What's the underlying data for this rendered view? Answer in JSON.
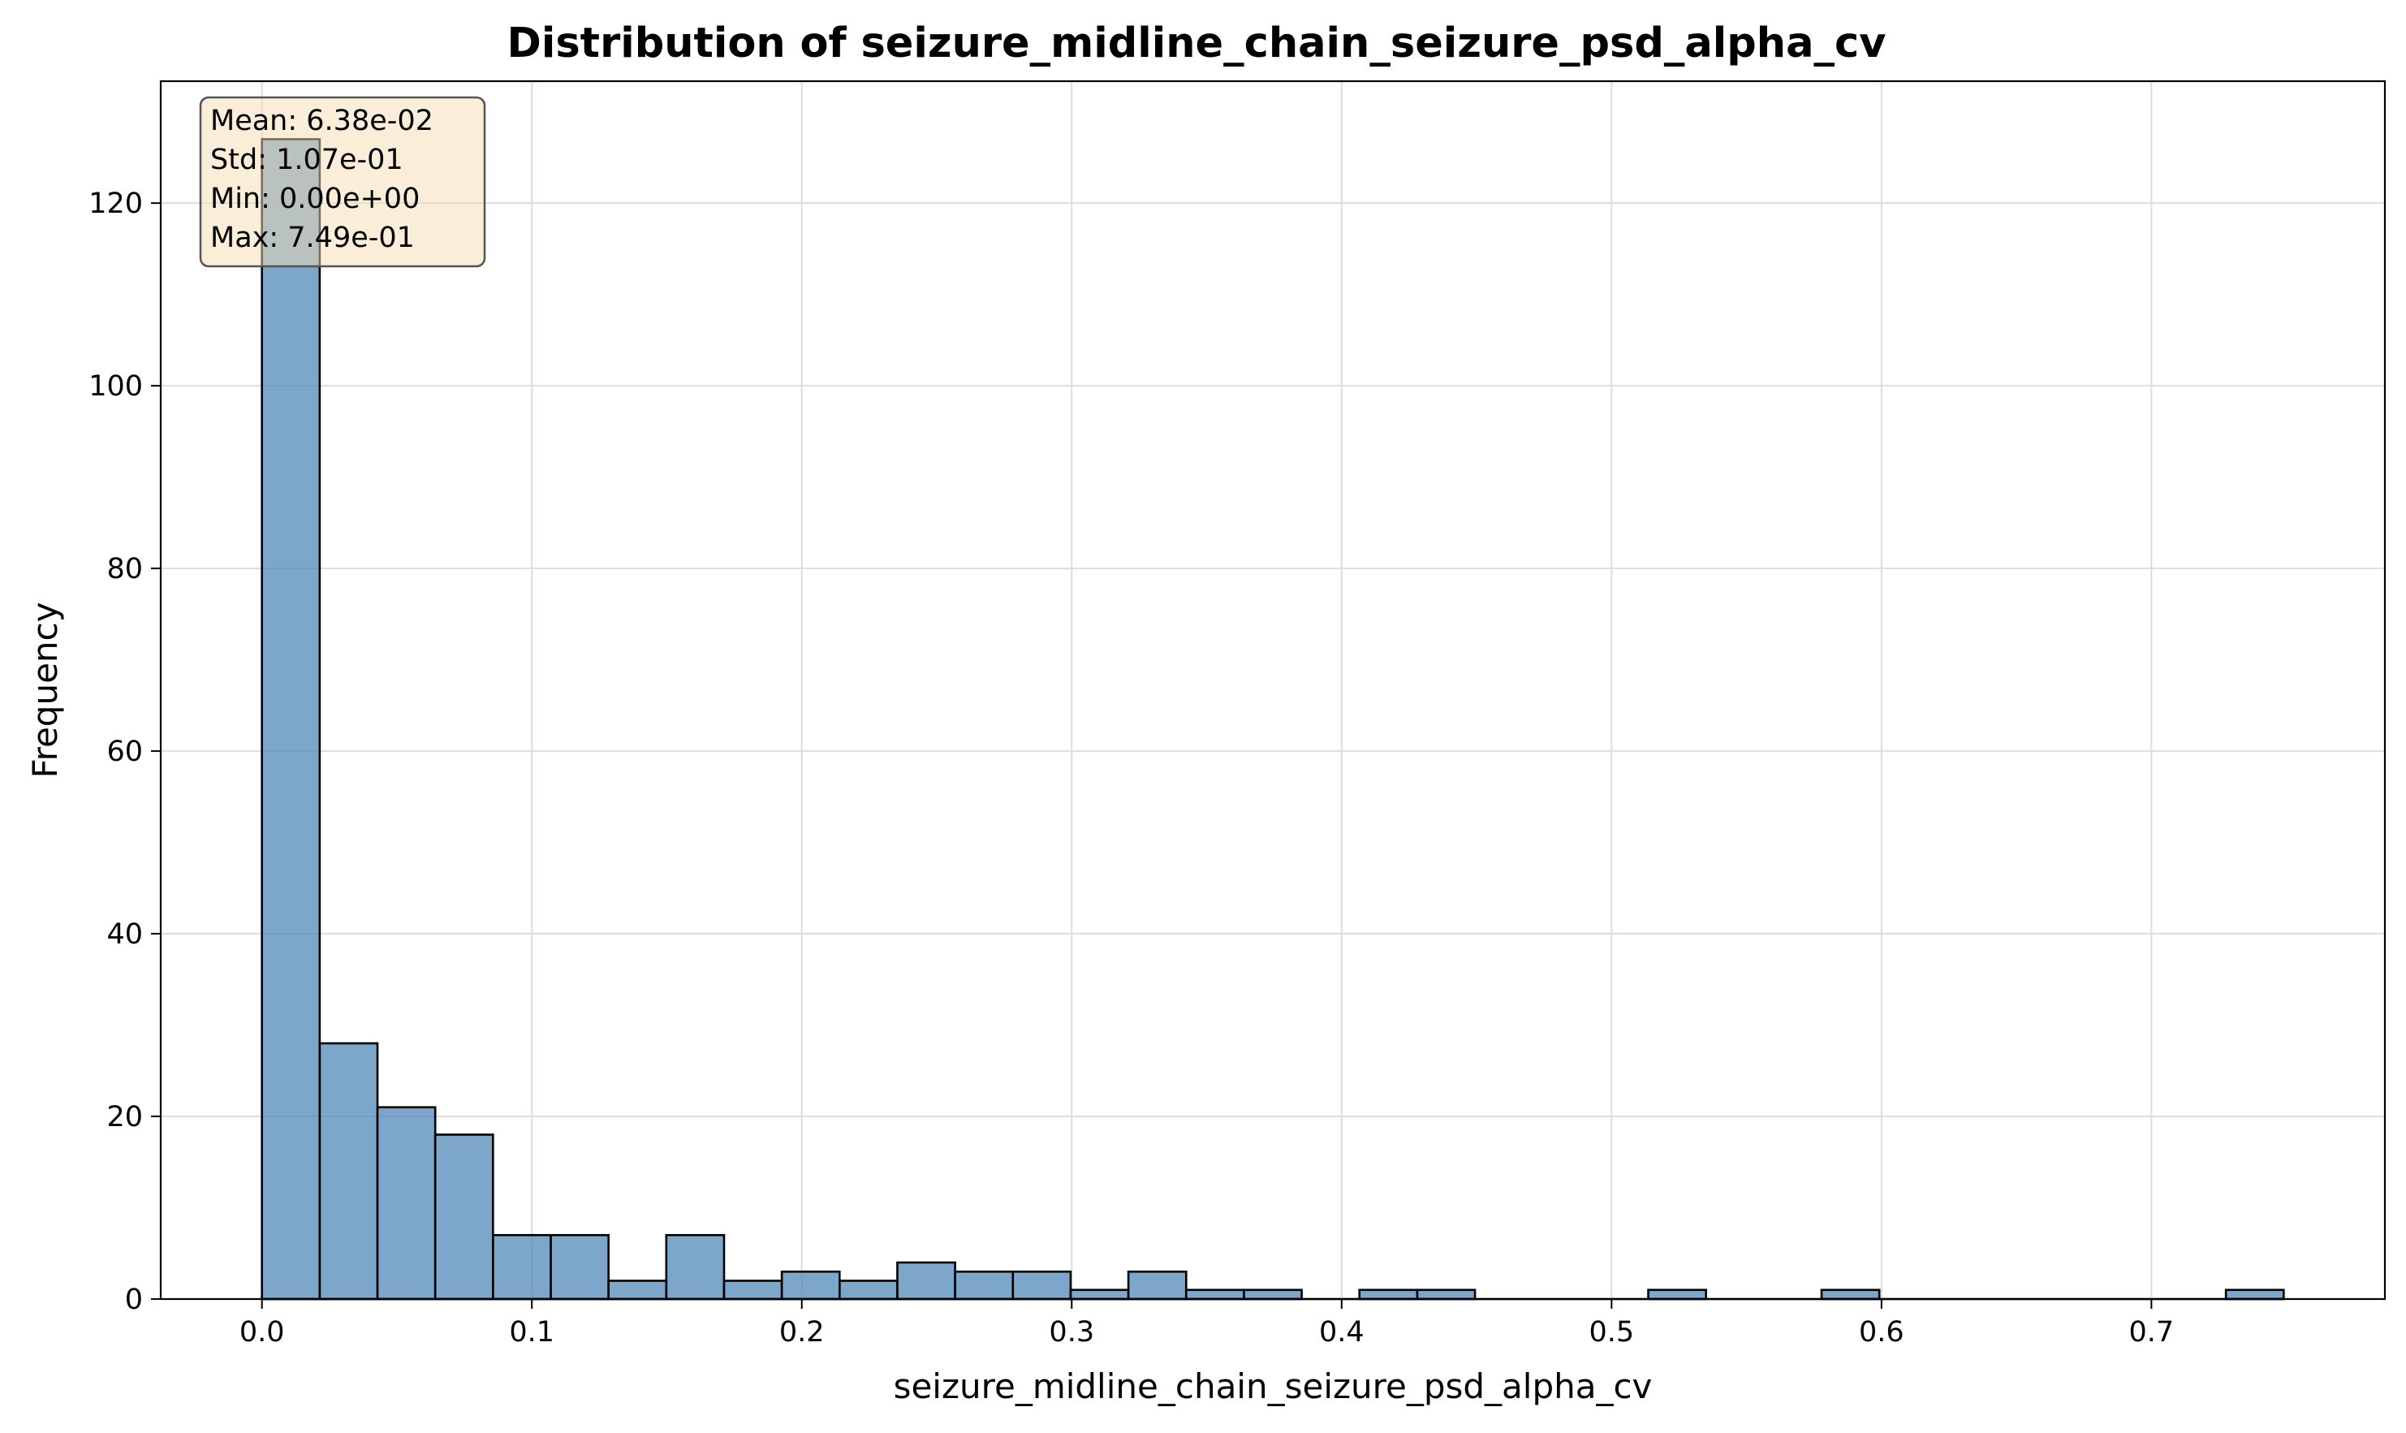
{
  "chart_data": {
    "type": "bar",
    "title": "Distribution of seizure_midline_chain_seizure_psd_alpha_cv",
    "xlabel": "seizure_midline_chain_seizure_psd_alpha_cv",
    "ylabel": "Frequency",
    "xlim": [
      -0.0375,
      0.7865
    ],
    "ylim": [
      0,
      133.35
    ],
    "xticks": [
      0.0,
      0.1,
      0.2,
      0.3,
      0.4,
      0.5,
      0.6,
      0.7
    ],
    "xtick_labels": [
      "0.0",
      "0.1",
      "0.2",
      "0.3",
      "0.4",
      "0.5",
      "0.6",
      "0.7"
    ],
    "yticks": [
      0,
      20,
      40,
      60,
      80,
      100,
      120
    ],
    "ytick_labels": [
      "0",
      "20",
      "40",
      "60",
      "80",
      "100",
      "120"
    ],
    "grid": true,
    "bar_color": "#4682b4",
    "bin_range": [
      0.0,
      0.749
    ],
    "bins": 35,
    "values": [
      127,
      28,
      21,
      18,
      7,
      7,
      2,
      7,
      2,
      3,
      2,
      4,
      3,
      3,
      1,
      3,
      1,
      1,
      0,
      1,
      1,
      0,
      0,
      0,
      1,
      0,
      0,
      1,
      0,
      0,
      0,
      0,
      0,
      0,
      1
    ],
    "stats_box": {
      "lines": [
        "Mean: 6.38e-02",
        "Std: 1.07e-01",
        "Min: 0.00e+00",
        "Max: 7.49e-01"
      ],
      "background": "#f5deb3",
      "position": "top-left"
    }
  }
}
